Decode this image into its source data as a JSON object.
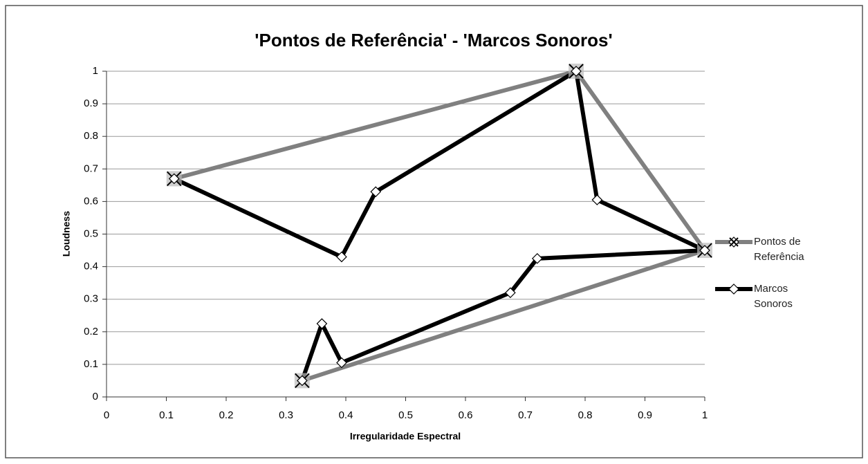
{
  "chart_data": {
    "type": "line",
    "title": "'Pontos de Referência' - 'Marcos Sonoros'",
    "xlabel": "Irregularidade Espectral",
    "ylabel": "Loudness",
    "xlim": [
      0,
      1
    ],
    "xticks": [
      0,
      0.1,
      0.2,
      0.3,
      0.4,
      0.5,
      0.6,
      0.7,
      0.8,
      0.9,
      1
    ],
    "ylim": [
      0,
      1
    ],
    "yticks": [
      0,
      0.1,
      0.2,
      0.3,
      0.4,
      0.5,
      0.6,
      0.7,
      0.8,
      0.9,
      1
    ],
    "grid": true,
    "legend": "right",
    "series": [
      {
        "name": "Pontos de Referência",
        "color": "#808080",
        "marker": "x",
        "x": [
          0.113,
          0.785,
          1.0,
          0.327
        ],
        "values": [
          0.67,
          1.0,
          0.45,
          0.05
        ]
      },
      {
        "name": "Marcos Sonoros",
        "color": "#000000",
        "marker": "diamond",
        "x": [
          0.113,
          0.393,
          0.45,
          0.785,
          0.82,
          1.0,
          0.72,
          0.675,
          0.393,
          0.36,
          0.327
        ],
        "values": [
          0.67,
          0.43,
          0.63,
          1.0,
          0.605,
          0.45,
          0.425,
          0.32,
          0.105,
          0.225,
          0.05
        ]
      }
    ]
  }
}
